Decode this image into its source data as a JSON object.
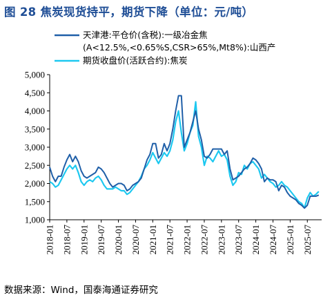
{
  "figure": {
    "title": "图 28 焦炭现货持平，期货下降（单位：元/吨）",
    "source": "数据来源：Wind，国泰海通证券研究"
  },
  "colors": {
    "title": "#1f4e96",
    "series_spot": "#1f5fa8",
    "series_futures": "#1cc8f0",
    "axis": "#000000"
  },
  "chart_data": {
    "type": "line",
    "ylim": [
      1000,
      5000
    ],
    "yticks": [
      "1,000",
      "1,500",
      "2,000",
      "2,500",
      "3,000",
      "3,500",
      "4,000",
      "4,500",
      "5,000"
    ],
    "ytick_values": [
      1000,
      1500,
      2000,
      2500,
      3000,
      3500,
      4000,
      4500,
      5000
    ],
    "xlim": [
      "2018-01",
      "2025-12"
    ],
    "xticks": [
      "2018-01",
      "2018-07",
      "2019-01",
      "2019-07",
      "2020-01",
      "2020-07",
      "2021-01",
      "2021-07",
      "2022-01",
      "2022-07",
      "2023-01",
      "2023-07",
      "2024-01",
      "2024-07",
      "2025-01",
      "2025-07"
    ],
    "grid": false,
    "legend_position": "top-left",
    "series": [
      {
        "name": "天津港:平仓价(含税):一级冶金焦(A<12.5%,<0.65%S,CSR>65%,Mt8%):山西产",
        "color_key": "series_spot",
        "points": [
          [
            "2018-01",
            2450
          ],
          [
            "2018-02",
            2200
          ],
          [
            "2018-03",
            2050
          ],
          [
            "2018-04",
            2200
          ],
          [
            "2018-05",
            2200
          ],
          [
            "2018-06",
            2450
          ],
          [
            "2018-07",
            2650
          ],
          [
            "2018-08",
            2800
          ],
          [
            "2018-09",
            2600
          ],
          [
            "2018-10",
            2750
          ],
          [
            "2018-11",
            2600
          ],
          [
            "2018-12",
            2350
          ],
          [
            "2019-01",
            2200
          ],
          [
            "2019-02",
            2150
          ],
          [
            "2019-03",
            2200
          ],
          [
            "2019-04",
            2250
          ],
          [
            "2019-05",
            2300
          ],
          [
            "2019-06",
            2450
          ],
          [
            "2019-07",
            2400
          ],
          [
            "2019-08",
            2300
          ],
          [
            "2019-09",
            2150
          ],
          [
            "2019-10",
            2000
          ],
          [
            "2019-11",
            1900
          ],
          [
            "2019-12",
            1950
          ],
          [
            "2020-01",
            2000
          ],
          [
            "2020-02",
            2000
          ],
          [
            "2020-03",
            1950
          ],
          [
            "2020-04",
            1800
          ],
          [
            "2020-05",
            1850
          ],
          [
            "2020-06",
            1950
          ],
          [
            "2020-07",
            2000
          ],
          [
            "2020-08",
            2050
          ],
          [
            "2020-09",
            2150
          ],
          [
            "2020-10",
            2400
          ],
          [
            "2020-11",
            2650
          ],
          [
            "2020-12",
            2800
          ],
          [
            "2021-01",
            3100
          ],
          [
            "2021-02",
            3100
          ],
          [
            "2021-03",
            2700
          ],
          [
            "2021-04",
            2800
          ],
          [
            "2021-05",
            3100
          ],
          [
            "2021-06",
            2900
          ],
          [
            "2021-07",
            3100
          ],
          [
            "2021-08",
            3500
          ],
          [
            "2021-09",
            4000
          ],
          [
            "2021-10",
            4420
          ],
          [
            "2021-11",
            4420
          ],
          [
            "2021-12",
            3000
          ],
          [
            "2022-01",
            3200
          ],
          [
            "2022-02",
            3400
          ],
          [
            "2022-03",
            3700
          ],
          [
            "2022-04",
            4000
          ],
          [
            "2022-05",
            3500
          ],
          [
            "2022-06",
            3200
          ],
          [
            "2022-07",
            2750
          ],
          [
            "2022-08",
            2700
          ],
          [
            "2022-09",
            2800
          ],
          [
            "2022-10",
            2950
          ],
          [
            "2022-11",
            2950
          ],
          [
            "2022-12",
            2950
          ],
          [
            "2023-01",
            2950
          ],
          [
            "2023-02",
            2800
          ],
          [
            "2023-03",
            2900
          ],
          [
            "2023-04",
            2400
          ],
          [
            "2023-05",
            2100
          ],
          [
            "2023-06",
            2150
          ],
          [
            "2023-07",
            2200
          ],
          [
            "2023-08",
            2300
          ],
          [
            "2023-09",
            2400
          ],
          [
            "2023-10",
            2450
          ],
          [
            "2023-11",
            2550
          ],
          [
            "2023-12",
            2700
          ],
          [
            "2024-01",
            2650
          ],
          [
            "2024-02",
            2550
          ],
          [
            "2024-03",
            2400
          ],
          [
            "2024-04",
            2050
          ],
          [
            "2024-05",
            2150
          ],
          [
            "2024-06",
            2100
          ],
          [
            "2024-07",
            2100
          ],
          [
            "2024-08",
            2050
          ],
          [
            "2024-09",
            1800
          ],
          [
            "2024-10",
            1950
          ],
          [
            "2024-11",
            1900
          ],
          [
            "2024-12",
            1750
          ],
          [
            "2025-01",
            1650
          ],
          [
            "2025-02",
            1600
          ],
          [
            "2025-03",
            1550
          ],
          [
            "2025-04",
            1450
          ],
          [
            "2025-05",
            1400
          ],
          [
            "2025-06",
            1320
          ],
          [
            "2025-07",
            1400
          ],
          [
            "2025-08",
            1650
          ],
          [
            "2025-09",
            1650
          ],
          [
            "2025-10",
            1650
          ],
          [
            "2025-11",
            1680
          ]
        ]
      },
      {
        "name": "期货收盘价(活跃合约):焦炭",
        "color_key": "series_futures",
        "points": [
          [
            "2018-01",
            2050
          ],
          [
            "2018-02",
            2000
          ],
          [
            "2018-03",
            1900
          ],
          [
            "2018-04",
            1950
          ],
          [
            "2018-05",
            2100
          ],
          [
            "2018-06",
            2250
          ],
          [
            "2018-07",
            2400
          ],
          [
            "2018-08",
            2500
          ],
          [
            "2018-09",
            2400
          ],
          [
            "2018-10",
            2500
          ],
          [
            "2018-11",
            2300
          ],
          [
            "2018-12",
            2050
          ],
          [
            "2019-01",
            1950
          ],
          [
            "2019-02",
            2050
          ],
          [
            "2019-03",
            2100
          ],
          [
            "2019-04",
            2050
          ],
          [
            "2019-05",
            2150
          ],
          [
            "2019-06",
            2200
          ],
          [
            "2019-07",
            2100
          ],
          [
            "2019-08",
            1950
          ],
          [
            "2019-09",
            1850
          ],
          [
            "2019-10",
            1850
          ],
          [
            "2019-11",
            1850
          ],
          [
            "2019-12",
            1900
          ],
          [
            "2020-01",
            1850
          ],
          [
            "2020-02",
            1800
          ],
          [
            "2020-03",
            1800
          ],
          [
            "2020-04",
            1700
          ],
          [
            "2020-05",
            1750
          ],
          [
            "2020-06",
            1850
          ],
          [
            "2020-07",
            1950
          ],
          [
            "2020-08",
            2050
          ],
          [
            "2020-09",
            2200
          ],
          [
            "2020-10",
            2400
          ],
          [
            "2020-11",
            2500
          ],
          [
            "2020-12",
            2650
          ],
          [
            "2021-01",
            2850
          ],
          [
            "2021-02",
            2700
          ],
          [
            "2021-03",
            2550
          ],
          [
            "2021-04",
            2700
          ],
          [
            "2021-05",
            2850
          ],
          [
            "2021-06",
            2750
          ],
          [
            "2021-07",
            2900
          ],
          [
            "2021-08",
            3200
          ],
          [
            "2021-09",
            3700
          ],
          [
            "2021-10",
            4000
          ],
          [
            "2021-11",
            3400
          ],
          [
            "2021-12",
            2900
          ],
          [
            "2022-01",
            3100
          ],
          [
            "2022-02",
            3400
          ],
          [
            "2022-03",
            3600
          ],
          [
            "2022-04",
            4250
          ],
          [
            "2022-05",
            3300
          ],
          [
            "2022-06",
            3000
          ],
          [
            "2022-07",
            2500
          ],
          [
            "2022-08",
            2750
          ],
          [
            "2022-09",
            2700
          ],
          [
            "2022-10",
            2600
          ],
          [
            "2022-11",
            2750
          ],
          [
            "2022-12",
            2900
          ],
          [
            "2023-01",
            2750
          ],
          [
            "2023-02",
            2800
          ],
          [
            "2023-03",
            2650
          ],
          [
            "2023-04",
            2200
          ],
          [
            "2023-05",
            1950
          ],
          [
            "2023-06",
            2050
          ],
          [
            "2023-07",
            2300
          ],
          [
            "2023-08",
            2250
          ],
          [
            "2023-09",
            2500
          ],
          [
            "2023-10",
            2400
          ],
          [
            "2023-11",
            2550
          ],
          [
            "2023-12",
            2600
          ],
          [
            "2024-01",
            2500
          ],
          [
            "2024-02",
            2400
          ],
          [
            "2024-03",
            2150
          ],
          [
            "2024-04",
            2250
          ],
          [
            "2024-05",
            2150
          ],
          [
            "2024-06",
            2050
          ],
          [
            "2024-07",
            2000
          ],
          [
            "2024-08",
            1900
          ],
          [
            "2024-09",
            1950
          ],
          [
            "2024-10",
            2050
          ],
          [
            "2024-11",
            1950
          ],
          [
            "2024-12",
            1900
          ],
          [
            "2025-01",
            1800
          ],
          [
            "2025-02",
            1700
          ],
          [
            "2025-03",
            1600
          ],
          [
            "2025-04",
            1500
          ],
          [
            "2025-05",
            1450
          ],
          [
            "2025-06",
            1330
          ],
          [
            "2025-07",
            1600
          ],
          [
            "2025-08",
            1750
          ],
          [
            "2025-09",
            1650
          ],
          [
            "2025-10",
            1700
          ],
          [
            "2025-11",
            1780
          ]
        ]
      }
    ]
  }
}
